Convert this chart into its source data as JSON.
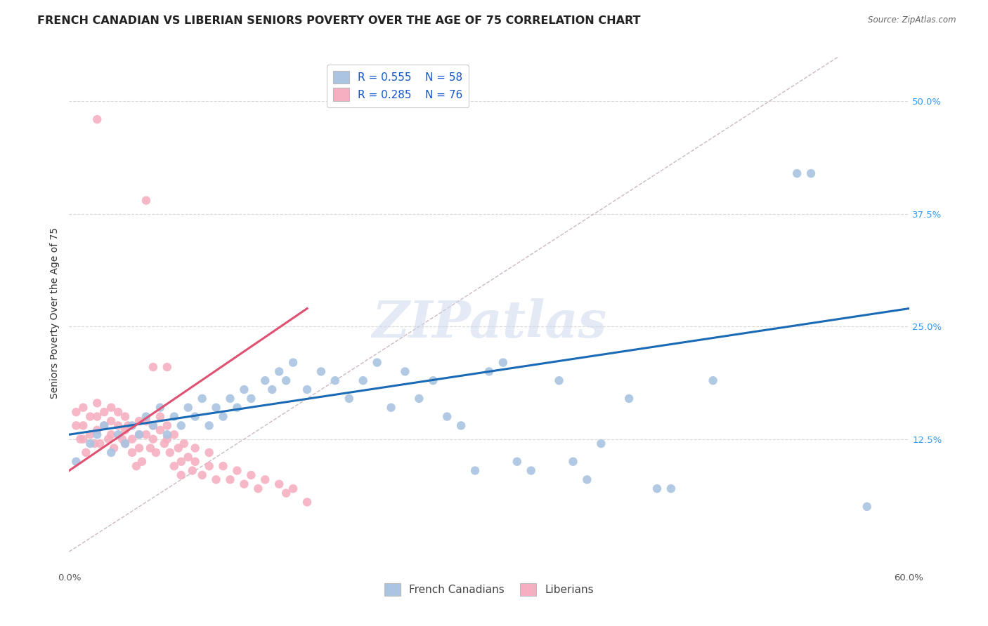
{
  "title": "FRENCH CANADIAN VS LIBERIAN SENIORS POVERTY OVER THE AGE OF 75 CORRELATION CHART",
  "source": "Source: ZipAtlas.com",
  "ylabel": "Seniors Poverty Over the Age of 75",
  "xlim": [
    0.0,
    0.6
  ],
  "ylim": [
    -0.02,
    0.55
  ],
  "xticks": [
    0.0,
    0.1,
    0.2,
    0.3,
    0.4,
    0.5,
    0.6
  ],
  "xticklabels": [
    "0.0%",
    "",
    "",
    "",
    "",
    "",
    "60.0%"
  ],
  "ytick_right": [
    0.125,
    0.25,
    0.375,
    0.5
  ],
  "ytick_right_labels": [
    "12.5%",
    "25.0%",
    "37.5%",
    "50.0%"
  ],
  "watermark": "ZIPatlas",
  "legend_labels": [
    "French Canadians",
    "Liberians"
  ],
  "blue_R": 0.555,
  "blue_N": 58,
  "pink_R": 0.285,
  "pink_N": 76,
  "blue_color": "#aac4e2",
  "pink_color": "#f5afc0",
  "blue_line_color": "#1a6ab5",
  "pink_line_color": "#e05070",
  "diagonal_color": "#ccb8c8",
  "background_color": "#ffffff",
  "grid_color": "#d8d8d8",
  "title_fontsize": 11.5,
  "axis_fontsize": 10,
  "tick_fontsize": 9.5,
  "legend_fontsize": 11,
  "blue_scatter_x": [
    0.005,
    0.015,
    0.02,
    0.025,
    0.03,
    0.035,
    0.04,
    0.045,
    0.05,
    0.055,
    0.06,
    0.065,
    0.07,
    0.075,
    0.08,
    0.085,
    0.09,
    0.095,
    0.1,
    0.105,
    0.11,
    0.115,
    0.12,
    0.125,
    0.13,
    0.14,
    0.145,
    0.15,
    0.155,
    0.16,
    0.17,
    0.18,
    0.19,
    0.2,
    0.21,
    0.22,
    0.23,
    0.24,
    0.25,
    0.26,
    0.27,
    0.28,
    0.29,
    0.3,
    0.31,
    0.32,
    0.33,
    0.35,
    0.36,
    0.37,
    0.38,
    0.4,
    0.42,
    0.43,
    0.46,
    0.52,
    0.53,
    0.57
  ],
  "blue_scatter_y": [
    0.1,
    0.12,
    0.13,
    0.14,
    0.11,
    0.13,
    0.12,
    0.14,
    0.13,
    0.15,
    0.14,
    0.16,
    0.13,
    0.15,
    0.14,
    0.16,
    0.15,
    0.17,
    0.14,
    0.16,
    0.15,
    0.17,
    0.16,
    0.18,
    0.17,
    0.19,
    0.18,
    0.2,
    0.19,
    0.21,
    0.18,
    0.2,
    0.19,
    0.17,
    0.19,
    0.21,
    0.16,
    0.2,
    0.17,
    0.19,
    0.15,
    0.14,
    0.09,
    0.2,
    0.21,
    0.1,
    0.09,
    0.19,
    0.1,
    0.08,
    0.12,
    0.17,
    0.07,
    0.07,
    0.19,
    0.42,
    0.42,
    0.05
  ],
  "pink_scatter_x": [
    0.005,
    0.005,
    0.008,
    0.01,
    0.01,
    0.01,
    0.012,
    0.015,
    0.015,
    0.018,
    0.02,
    0.02,
    0.02,
    0.022,
    0.025,
    0.025,
    0.028,
    0.03,
    0.03,
    0.03,
    0.032,
    0.035,
    0.035,
    0.038,
    0.04,
    0.04,
    0.04,
    0.042,
    0.045,
    0.045,
    0.048,
    0.05,
    0.05,
    0.05,
    0.052,
    0.055,
    0.055,
    0.058,
    0.06,
    0.06,
    0.062,
    0.065,
    0.065,
    0.068,
    0.07,
    0.07,
    0.072,
    0.075,
    0.075,
    0.078,
    0.08,
    0.08,
    0.082,
    0.085,
    0.088,
    0.09,
    0.09,
    0.095,
    0.1,
    0.1,
    0.105,
    0.11,
    0.115,
    0.12,
    0.125,
    0.13,
    0.135,
    0.14,
    0.15,
    0.155,
    0.16,
    0.17,
    0.02,
    0.055,
    0.06,
    0.07
  ],
  "pink_scatter_y": [
    0.155,
    0.14,
    0.125,
    0.16,
    0.14,
    0.125,
    0.11,
    0.15,
    0.13,
    0.12,
    0.165,
    0.15,
    0.135,
    0.12,
    0.155,
    0.14,
    0.125,
    0.16,
    0.145,
    0.13,
    0.115,
    0.155,
    0.14,
    0.125,
    0.15,
    0.135,
    0.12,
    0.14,
    0.125,
    0.11,
    0.095,
    0.145,
    0.13,
    0.115,
    0.1,
    0.145,
    0.13,
    0.115,
    0.14,
    0.125,
    0.11,
    0.15,
    0.135,
    0.12,
    0.14,
    0.125,
    0.11,
    0.095,
    0.13,
    0.115,
    0.1,
    0.085,
    0.12,
    0.105,
    0.09,
    0.115,
    0.1,
    0.085,
    0.11,
    0.095,
    0.08,
    0.095,
    0.08,
    0.09,
    0.075,
    0.085,
    0.07,
    0.08,
    0.075,
    0.065,
    0.07,
    0.055,
    0.48,
    0.39,
    0.205,
    0.205
  ]
}
